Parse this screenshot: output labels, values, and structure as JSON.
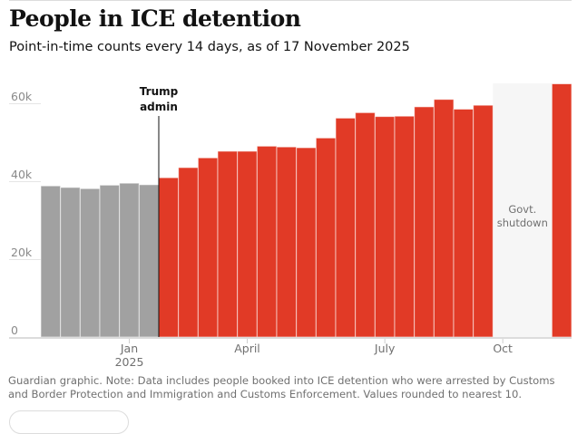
{
  "header": {
    "title": "People in ICE detention",
    "subtitle": "Point-in-time counts every 14 days, as of 17 November 2025"
  },
  "chart_data": {
    "type": "bar",
    "title": "People in ICE detention",
    "subtitle": "Point-in-time counts every 14 days, as of 17 November 2025",
    "xlabel": "",
    "ylabel": "",
    "ylim": [
      0,
      60000
    ],
    "yticks": [
      {
        "value": 0,
        "label": "0"
      },
      {
        "value": 20000,
        "label": "20k"
      },
      {
        "value": 40000,
        "label": "40k"
      },
      {
        "value": 60000,
        "label": "60k"
      }
    ],
    "xticks": [
      {
        "label": "Jan",
        "label2": "2025",
        "at_category": 4
      },
      {
        "label": "April",
        "label2": "",
        "at_category": 10
      },
      {
        "label": "July",
        "label2": "",
        "at_category": 17
      },
      {
        "label": "Oct",
        "label2": "",
        "at_category": 23
      }
    ],
    "categories": [
      "2024-11-18",
      "2024-12-02",
      "2024-12-16",
      "2024-12-30",
      "2025-01-13",
      "2025-01-27",
      "2025-02-10",
      "2025-02-24",
      "2025-03-10",
      "2025-03-24",
      "2025-04-07",
      "2025-04-21",
      "2025-05-05",
      "2025-05-19",
      "2025-06-02",
      "2025-06-16",
      "2025-06-30",
      "2025-07-14",
      "2025-07-28",
      "2025-08-11",
      "2025-08-25",
      "2025-09-08",
      "2025-09-22",
      "2025-10-06",
      "2025-10-20",
      "2025-11-03",
      "2025-11-17"
    ],
    "values": [
      38800,
      38400,
      38100,
      39000,
      39500,
      39100,
      40900,
      43500,
      46000,
      47700,
      47700,
      49000,
      48800,
      48600,
      51100,
      56200,
      57600,
      56600,
      56700,
      59100,
      61000,
      58500,
      59500,
      null,
      null,
      null,
      65000
    ],
    "series_split_index": 6,
    "colors": {
      "pre": "#a1a1a1",
      "trump": "#e13a26",
      "shutdown_band": "#f6f6f6",
      "grid": "#e5e5e5",
      "annotation": "#121212",
      "muted": "#707070"
    },
    "annotations": [
      {
        "label_lines": [
          "Trump",
          "admin"
        ],
        "at_boundary": 6,
        "type": "vline"
      },
      {
        "label_lines": [
          "Govt.",
          "shutdown"
        ],
        "from_category": 23,
        "to_category": 25,
        "type": "band"
      }
    ],
    "grid": true,
    "legend": "none"
  },
  "footer": {
    "note": "Guardian graphic. Note: Data includes people booked into ICE detention who were arrested by Customs and Border Protection and Immigration and Customs Enforcement. Values rounded to nearest 10."
  }
}
